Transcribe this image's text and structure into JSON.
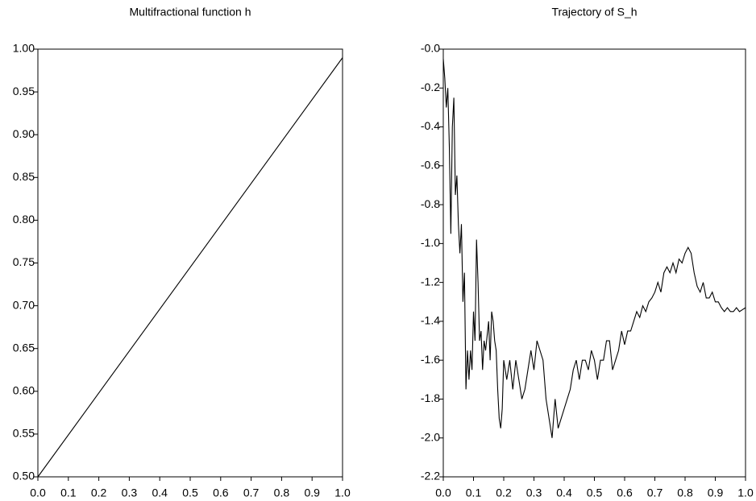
{
  "chart_data": [
    {
      "type": "line",
      "title": "Multifractional function h",
      "color": "#000000",
      "x": [
        0,
        1
      ],
      "values": [
        0.5,
        0.99
      ],
      "xlim": [
        0,
        1
      ],
      "ylim": [
        0.5,
        1
      ],
      "xticks": [
        {
          "value": 0,
          "label": "0.0"
        },
        {
          "value": 0.1,
          "label": "0.1"
        },
        {
          "value": 0.2,
          "label": "0.2"
        },
        {
          "value": 0.3,
          "label": "0.3"
        },
        {
          "value": 0.4,
          "label": "0.4"
        },
        {
          "value": 0.5,
          "label": "0.5"
        },
        {
          "value": 0.6,
          "label": "0.6"
        },
        {
          "value": 0.7,
          "label": "0.7"
        },
        {
          "value": 0.8,
          "label": "0.8"
        },
        {
          "value": 0.9,
          "label": "0.9"
        },
        {
          "value": 1,
          "label": "1.0"
        }
      ],
      "yticks": [
        {
          "value": 0.5,
          "label": "0.50"
        },
        {
          "value": 0.55,
          "label": "0.55"
        },
        {
          "value": 0.6,
          "label": "0.60"
        },
        {
          "value": 0.65,
          "label": "0.65"
        },
        {
          "value": 0.7,
          "label": "0.70"
        },
        {
          "value": 0.75,
          "label": "0.75"
        },
        {
          "value": 0.8,
          "label": "0.80"
        },
        {
          "value": 0.85,
          "label": "0.85"
        },
        {
          "value": 0.9,
          "label": "0.90"
        },
        {
          "value": 0.95,
          "label": "0.95"
        },
        {
          "value": 1,
          "label": "1.00"
        }
      ]
    },
    {
      "type": "line",
      "title": "Trajectory of S_h",
      "color": "#000000",
      "x": [
        0,
        0.005,
        0.01,
        0.015,
        0.02,
        0.025,
        0.03,
        0.035,
        0.04,
        0.045,
        0.05,
        0.055,
        0.06,
        0.065,
        0.07,
        0.075,
        0.08,
        0.085,
        0.09,
        0.095,
        0.1,
        0.105,
        0.11,
        0.115,
        0.12,
        0.125,
        0.13,
        0.135,
        0.14,
        0.15,
        0.155,
        0.16,
        0.165,
        0.17,
        0.175,
        0.18,
        0.185,
        0.19,
        0.195,
        0.2,
        0.21,
        0.22,
        0.23,
        0.24,
        0.25,
        0.26,
        0.27,
        0.28,
        0.29,
        0.3,
        0.31,
        0.32,
        0.33,
        0.34,
        0.35,
        0.36,
        0.37,
        0.38,
        0.39,
        0.4,
        0.41,
        0.42,
        0.43,
        0.44,
        0.45,
        0.46,
        0.47,
        0.48,
        0.49,
        0.5,
        0.51,
        0.52,
        0.53,
        0.54,
        0.55,
        0.56,
        0.57,
        0.58,
        0.59,
        0.6,
        0.61,
        0.62,
        0.63,
        0.64,
        0.65,
        0.66,
        0.67,
        0.68,
        0.69,
        0.7,
        0.71,
        0.72,
        0.73,
        0.74,
        0.75,
        0.76,
        0.77,
        0.78,
        0.79,
        0.8,
        0.81,
        0.82,
        0.83,
        0.84,
        0.85,
        0.86,
        0.87,
        0.88,
        0.89,
        0.9,
        0.91,
        0.92,
        0.93,
        0.94,
        0.95,
        0.96,
        0.97,
        0.98,
        0.99,
        1
      ],
      "values": [
        -0.05,
        -0.15,
        -0.3,
        -0.2,
        -0.5,
        -0.95,
        -0.4,
        -0.25,
        -0.75,
        -0.65,
        -0.9,
        -1.05,
        -0.9,
        -1.3,
        -1.15,
        -1.75,
        -1.55,
        -1.7,
        -1.55,
        -1.65,
        -1.35,
        -1.5,
        -0.98,
        -1.2,
        -1.5,
        -1.45,
        -1.65,
        -1.5,
        -1.55,
        -1.4,
        -1.6,
        -1.35,
        -1.4,
        -1.5,
        -1.55,
        -1.75,
        -1.9,
        -1.95,
        -1.85,
        -1.6,
        -1.7,
        -1.6,
        -1.75,
        -1.6,
        -1.7,
        -1.8,
        -1.75,
        -1.65,
        -1.55,
        -1.65,
        -1.5,
        -1.55,
        -1.6,
        -1.8,
        -1.9,
        -2.0,
        -1.8,
        -1.95,
        -1.9,
        -1.85,
        -1.8,
        -1.75,
        -1.65,
        -1.6,
        -1.7,
        -1.6,
        -1.6,
        -1.65,
        -1.55,
        -1.6,
        -1.7,
        -1.6,
        -1.6,
        -1.5,
        -1.5,
        -1.65,
        -1.6,
        -1.55,
        -1.45,
        -1.52,
        -1.45,
        -1.45,
        -1.4,
        -1.35,
        -1.38,
        -1.32,
        -1.35,
        -1.3,
        -1.28,
        -1.25,
        -1.2,
        -1.25,
        -1.15,
        -1.12,
        -1.15,
        -1.1,
        -1.15,
        -1.08,
        -1.1,
        -1.05,
        -1.02,
        -1.05,
        -1.15,
        -1.22,
        -1.25,
        -1.2,
        -1.28,
        -1.28,
        -1.25,
        -1.3,
        -1.3,
        -1.33,
        -1.35,
        -1.33,
        -1.35,
        -1.35,
        -1.33,
        -1.35,
        -1.34,
        -1.33
      ],
      "xlim": [
        0,
        1
      ],
      "ylim": [
        -2.2,
        0
      ],
      "xticks": [
        {
          "value": 0,
          "label": "0.0"
        },
        {
          "value": 0.1,
          "label": "0.1"
        },
        {
          "value": 0.2,
          "label": "0.2"
        },
        {
          "value": 0.3,
          "label": "0.3"
        },
        {
          "value": 0.4,
          "label": "0.4"
        },
        {
          "value": 0.5,
          "label": "0.5"
        },
        {
          "value": 0.6,
          "label": "0.6"
        },
        {
          "value": 0.7,
          "label": "0.7"
        },
        {
          "value": 0.8,
          "label": "0.8"
        },
        {
          "value": 0.9,
          "label": "0.9"
        },
        {
          "value": 1,
          "label": "1.0"
        }
      ],
      "yticks": [
        {
          "value": 0,
          "label": "-0.0"
        },
        {
          "value": -0.2,
          "label": "-0.2"
        },
        {
          "value": -0.4,
          "label": "-0.4"
        },
        {
          "value": -0.6,
          "label": "-0.6"
        },
        {
          "value": -0.8,
          "label": "-0.8"
        },
        {
          "value": -1,
          "label": "-1.0"
        },
        {
          "value": -1.2,
          "label": "-1.2"
        },
        {
          "value": -1.4,
          "label": "-1.4"
        },
        {
          "value": -1.6,
          "label": "-1.6"
        },
        {
          "value": -1.8,
          "label": "-1.8"
        },
        {
          "value": -2,
          "label": "-2.0"
        },
        {
          "value": -2.2,
          "label": "-2.2"
        }
      ]
    }
  ]
}
